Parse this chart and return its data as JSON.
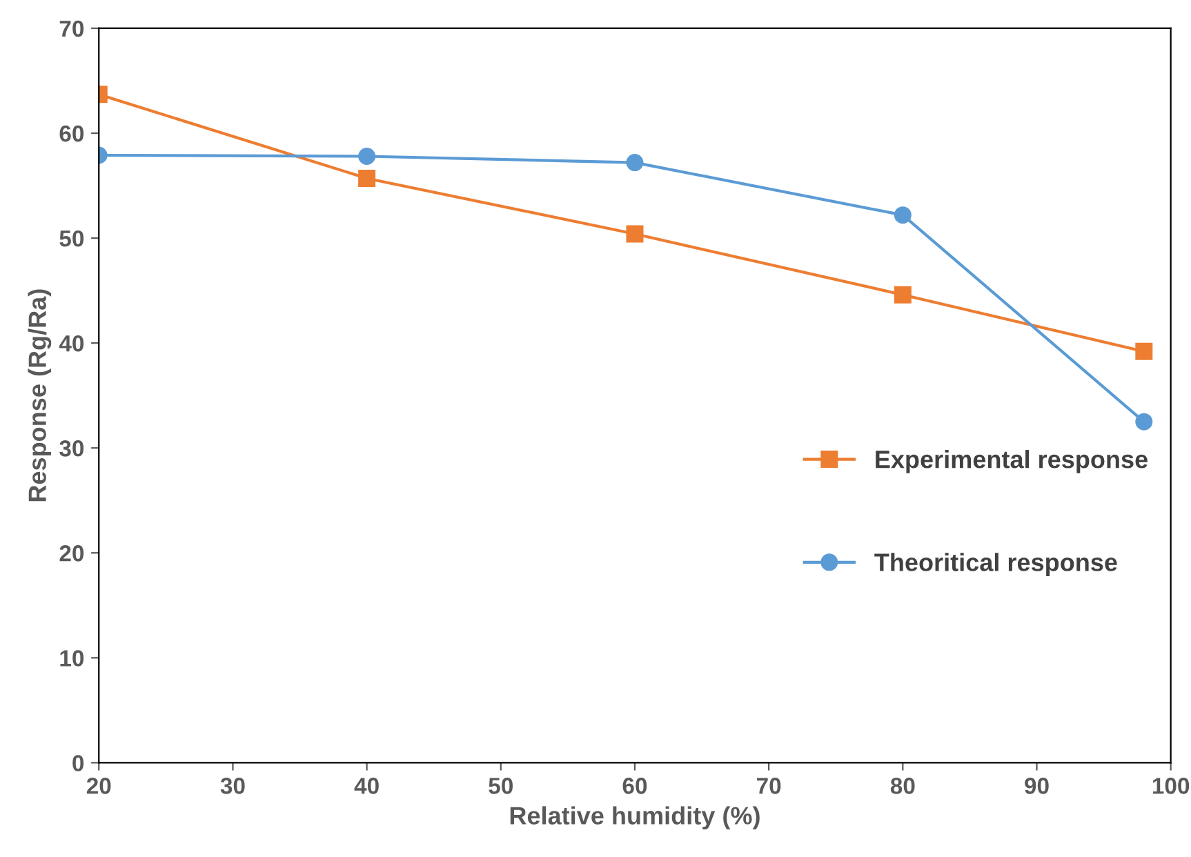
{
  "chart_data": {
    "type": "line",
    "xlabel": "Relative humidity (%)",
    "ylabel": "Response (Rg/Ra)",
    "xlim": [
      20,
      100
    ],
    "xticks": [
      20,
      30,
      40,
      50,
      60,
      70,
      80,
      90,
      100
    ],
    "ylim": [
      0,
      70
    ],
    "yticks": [
      0,
      10,
      20,
      30,
      40,
      50,
      60,
      70
    ],
    "grid": false,
    "legend": "right",
    "line_style": "solid",
    "series": [
      {
        "name": "Experimental response",
        "color": "#ed7d31",
        "marker": "square",
        "x": [
          20,
          40,
          60,
          80,
          98
        ],
        "values": [
          63.7,
          55.7,
          50.4,
          44.6,
          39.2
        ]
      },
      {
        "name": "Theoritical response",
        "color": "#5b9bd5",
        "marker": "circle",
        "x": [
          20,
          40,
          60,
          80,
          98
        ],
        "values": [
          57.9,
          57.8,
          57.2,
          52.2,
          32.5
        ]
      }
    ]
  }
}
